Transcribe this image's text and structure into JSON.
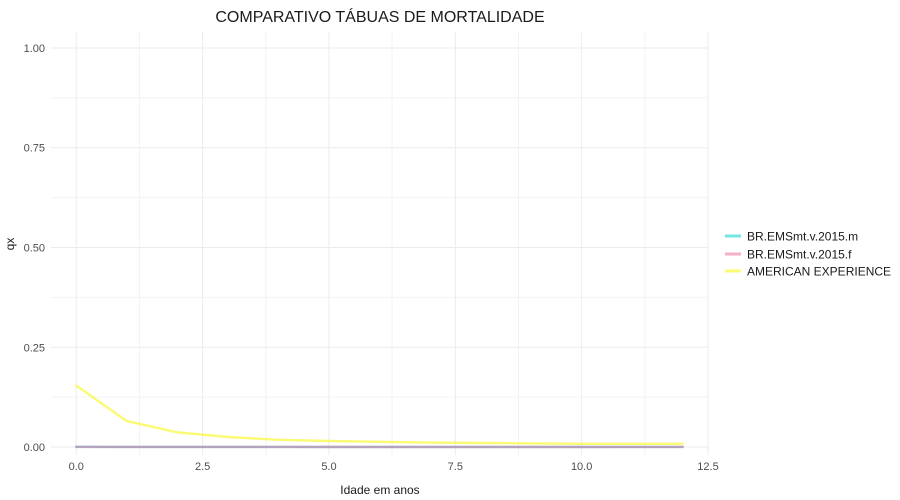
{
  "chart_data": {
    "type": "line",
    "title": "COMPARATIVO TÁBUAS DE MORTALIDADE",
    "xlabel": "Idade em anos",
    "ylabel": "qx",
    "xlim": [
      -0.5,
      12.5
    ],
    "ylim": [
      -0.02,
      1.04
    ],
    "x_ticks": [
      0,
      2.5,
      5,
      7.5,
      10,
      12.5
    ],
    "x_tick_labels": [
      "0.0",
      "2.5",
      "5.0",
      "7.5",
      "10.0",
      "12.5"
    ],
    "y_ticks": [
      0,
      0.25,
      0.5,
      0.75,
      1.0
    ],
    "y_tick_labels": [
      "0.00",
      "0.25",
      "0.50",
      "0.75",
      "1.00"
    ],
    "grid": true,
    "legend_position": "right",
    "series": [
      {
        "name": "BR.EMSmt.v.2015.m",
        "color": "#00d5cc",
        "x": [
          0,
          1,
          2,
          3,
          4,
          5,
          6,
          7,
          8,
          9,
          10,
          11,
          12
        ],
        "y": [
          0.0005,
          0.0004,
          0.0003,
          0.0003,
          0.0002,
          0.0002,
          0.0002,
          0.0002,
          0.0002,
          0.0002,
          0.0002,
          0.0003,
          0.0003
        ]
      },
      {
        "name": "BR.EMSmt.v.2015.f",
        "color": "#ee6ba0",
        "x": [
          0,
          1,
          2,
          3,
          4,
          5,
          6,
          7,
          8,
          9,
          10,
          11,
          12
        ],
        "y": [
          0.0004,
          0.0003,
          0.0002,
          0.0002,
          0.0002,
          0.0001,
          0.0001,
          0.0001,
          0.0001,
          0.0001,
          0.0001,
          0.0002,
          0.0002
        ]
      },
      {
        "name": "AMERICAN EXPERIENCE",
        "color": "#f7f600",
        "x": [
          0,
          1,
          2,
          3,
          4,
          5,
          6,
          7,
          8,
          9,
          10,
          11,
          12
        ],
        "y": [
          0.154,
          0.065,
          0.037,
          0.025,
          0.018,
          0.015,
          0.013,
          0.011,
          0.01,
          0.009,
          0.008,
          0.008,
          0.008
        ]
      }
    ]
  }
}
